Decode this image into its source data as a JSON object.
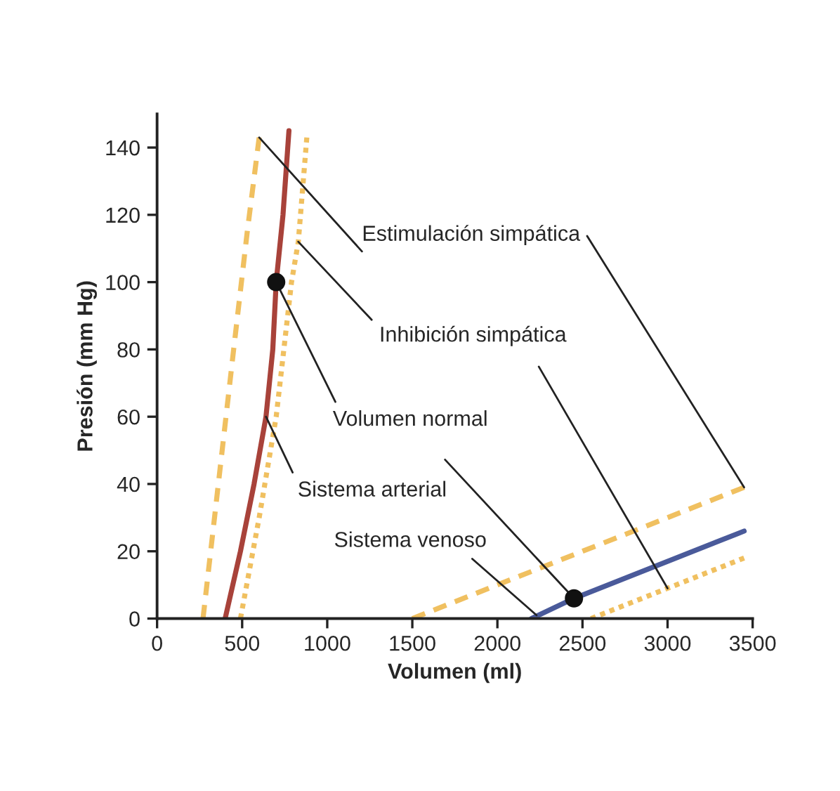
{
  "chart_data": {
    "type": "line",
    "xlabel": "Volumen (ml)",
    "ylabel": "Presión (mm Hg)",
    "xlim": [
      0,
      3500
    ],
    "xticks": [
      0,
      500,
      1000,
      1500,
      2000,
      2500,
      3000,
      3500
    ],
    "ylim": [
      0,
      150
    ],
    "yticks": [
      0,
      20,
      40,
      60,
      80,
      100,
      120,
      140
    ],
    "grid": false,
    "legend": false,
    "series": [
      {
        "color": "#a8423a",
        "line_style": "solid",
        "x": [
          400,
          490,
          570,
          640,
          680,
          700,
          740,
          775
        ],
        "values": [
          0,
          20,
          40,
          60,
          80,
          100,
          120,
          145
        ]
      },
      {
        "color": "#f0c060",
        "line_style": "dashed",
        "x": [
          270,
          360,
          450,
          530,
          600
        ],
        "values": [
          0,
          40,
          80,
          115,
          143
        ]
      },
      {
        "color": "#f0c060",
        "line_style": "dotted",
        "x": [
          490,
          600,
          700,
          790,
          830,
          880
        ],
        "values": [
          0,
          30,
          60,
          100,
          112,
          143
        ]
      },
      {
        "color": "#4a5a9a",
        "line_style": "solid",
        "x": [
          2200,
          2450,
          3450
        ],
        "values": [
          0,
          6,
          26
        ]
      },
      {
        "color": "#f0c060",
        "line_style": "dashed",
        "x": [
          1500,
          3450
        ],
        "values": [
          0,
          39
        ]
      },
      {
        "color": "#f0c060",
        "line_style": "dotted",
        "x": [
          2550,
          3000,
          3450
        ],
        "values": [
          0,
          9,
          18
        ]
      },
      {
        "type": "scatter",
        "color": "#111111",
        "marker": "circle",
        "x": [
          700,
          2450
        ],
        "values": [
          100,
          6
        ]
      }
    ],
    "annotations": [
      {
        "text": "Estimulación simpática",
        "x": 3450,
        "y": 39
      },
      {
        "text": "Inhibición simpática",
        "x": 830,
        "y": 112
      },
      {
        "text": "Volumen normal",
        "x": 700,
        "y": 100
      },
      {
        "text": "Sistema arterial",
        "x": 640,
        "y": 60
      },
      {
        "text": "Sistema venoso",
        "x": 2230,
        "y": 1
      }
    ]
  }
}
